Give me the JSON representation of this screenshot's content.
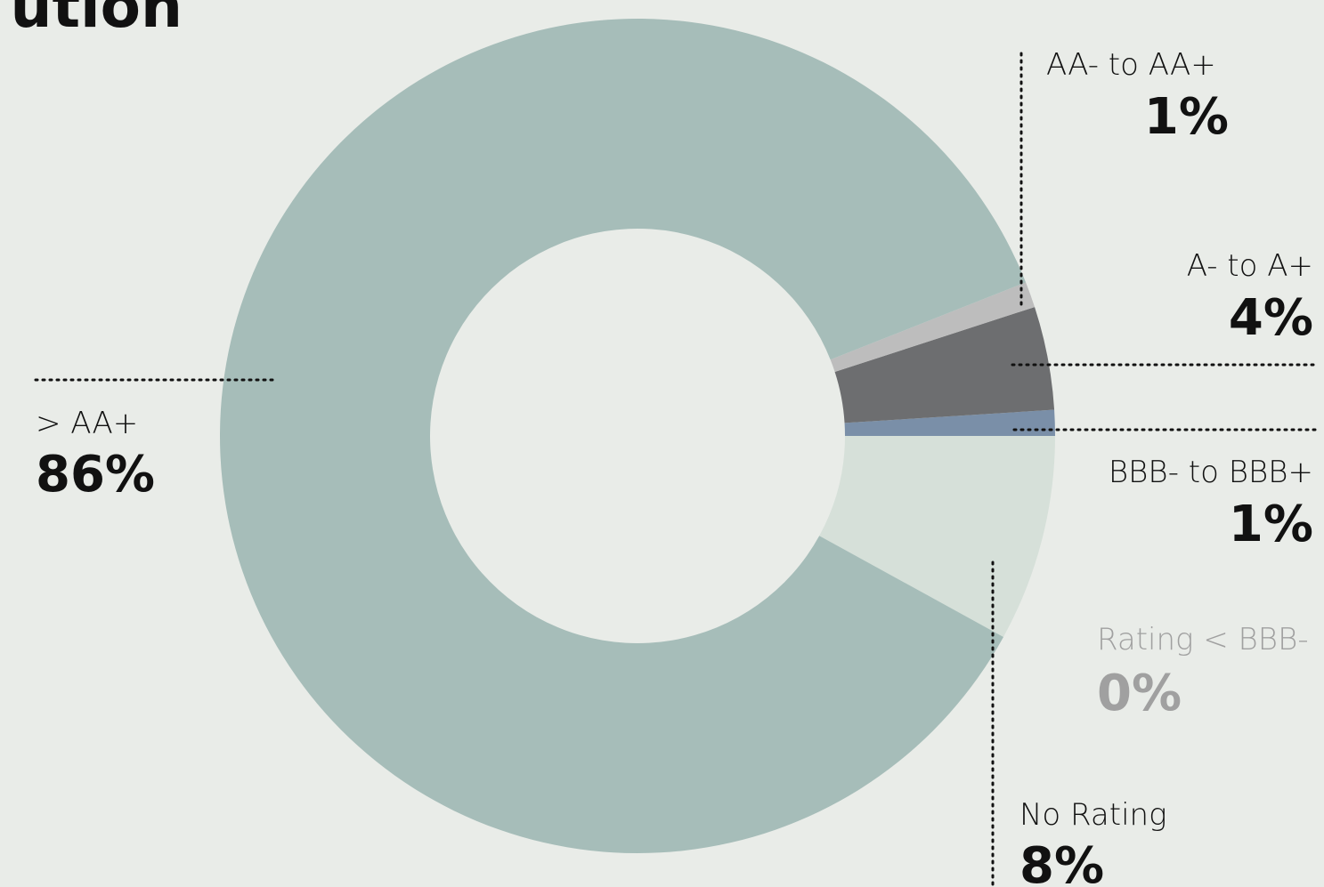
{
  "chart_data": {
    "type": "pie",
    "title": "ution",
    "categories": [
      "No Rating",
      "Rating < BBB-",
      "BBB- to BBB+",
      "A- to A+",
      "AA- to AA+",
      "> AA+"
    ],
    "values": [
      8,
      0,
      1,
      4,
      1,
      86
    ],
    "value_labels": [
      "8%",
      "0%",
      "1%",
      "4%",
      "1%",
      "86%"
    ],
    "colors": [
      "#d6e0d9",
      "#a0a0a0",
      "#7a8fa8",
      "#6d6e70",
      "#bdbdbd",
      "#a6bdb9"
    ]
  }
}
